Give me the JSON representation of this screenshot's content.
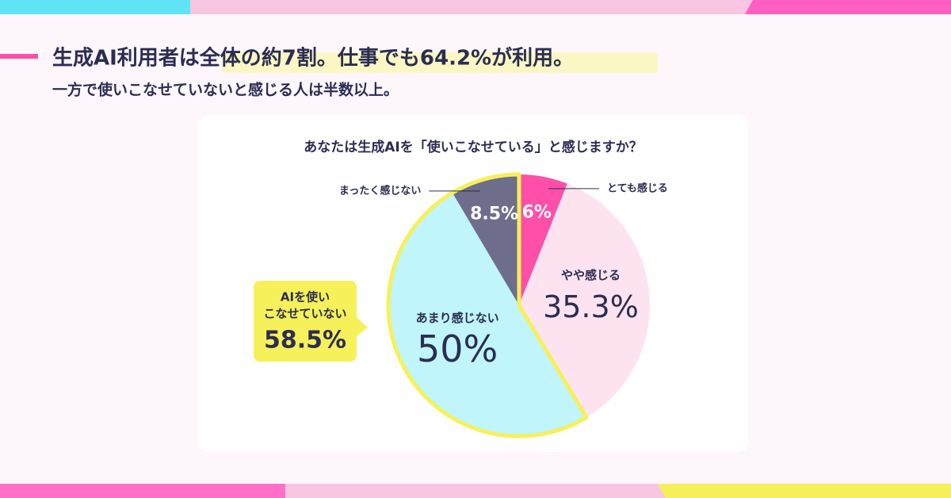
{
  "header": {
    "title": "生成AI利用者は全体の約7割。仕事でも64.2%が利用。",
    "subtitle": "一方で使いこなせていないと感じる人は半数以上。"
  },
  "chart_data": {
    "type": "pie",
    "title": "あなたは生成AIを「使いこなせている」と感じますか？",
    "categories": [
      "とても感じる",
      "やや感じる",
      "あまり感じない",
      "まったく感じない"
    ],
    "values": [
      6,
      35.3,
      50,
      8.5
    ],
    "value_labels": [
      "6%",
      "35.3%",
      "50%",
      "8.5%"
    ],
    "colors": [
      "#ff4fa8",
      "#fde3f0",
      "#bff5fb",
      "#6e6e8c"
    ],
    "callout": {
      "lines": [
        "AIを使い",
        "こなせていない"
      ],
      "value": "58.5%"
    }
  }
}
